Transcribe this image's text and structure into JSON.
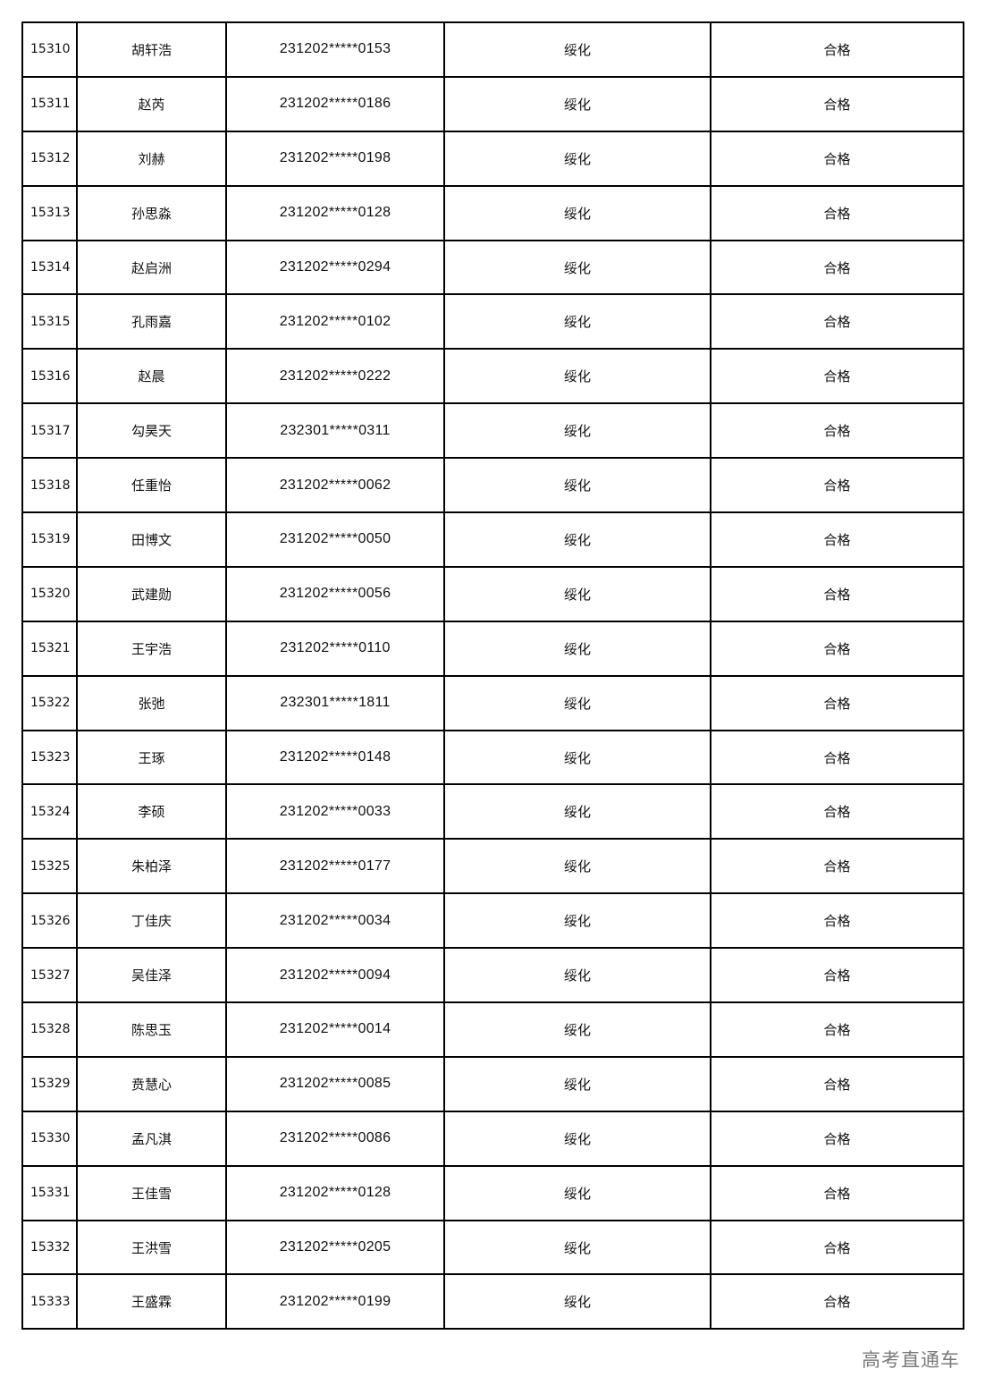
{
  "rows": [
    {
      "seq": "15310",
      "name": "胡轩浩",
      "id": "231202*****0153",
      "major": "绥化",
      "result": "合格"
    },
    {
      "seq": "15311",
      "name": "赵芮",
      "id": "231202*****0186",
      "major": "绥化",
      "result": "合格"
    },
    {
      "seq": "15312",
      "name": "刘赫",
      "id": "231202*****0198",
      "major": "绥化",
      "result": "合格"
    },
    {
      "seq": "15313",
      "name": "孙思淼",
      "id": "231202*****0128",
      "major": "绥化",
      "result": "合格"
    },
    {
      "seq": "15314",
      "name": "赵启洲",
      "id": "231202*****0294",
      "major": "绥化",
      "result": "合格"
    },
    {
      "seq": "15315",
      "name": "孔雨嘉",
      "id": "231202*****0102",
      "major": "绥化",
      "result": "合格"
    },
    {
      "seq": "15316",
      "name": "赵晨",
      "id": "231202*****0222",
      "major": "绥化",
      "result": "合格"
    },
    {
      "seq": "15317",
      "name": "勾昊天",
      "id": "232301*****0311",
      "major": "绥化",
      "result": "合格"
    },
    {
      "seq": "15318",
      "name": "任重怡",
      "id": "231202*****0062",
      "major": "绥化",
      "result": "合格"
    },
    {
      "seq": "15319",
      "name": "田博文",
      "id": "231202*****0050",
      "major": "绥化",
      "result": "合格"
    },
    {
      "seq": "15320",
      "name": "武建勋",
      "id": "231202*****0056",
      "major": "绥化",
      "result": "合格"
    },
    {
      "seq": "15321",
      "name": "王宇浩",
      "id": "231202*****0110",
      "major": "绥化",
      "result": "合格"
    },
    {
      "seq": "15322",
      "name": "张弛",
      "id": "232301*****1811",
      "major": "绥化",
      "result": "合格"
    },
    {
      "seq": "15323",
      "name": "王琢",
      "id": "231202*****0148",
      "major": "绥化",
      "result": "合格"
    },
    {
      "seq": "15324",
      "name": "李硕",
      "id": "231202*****0033",
      "major": "绥化",
      "result": "合格"
    },
    {
      "seq": "15325",
      "name": "朱柏泽",
      "id": "231202*****0177",
      "major": "绥化",
      "result": "合格"
    },
    {
      "seq": "15326",
      "name": "丁佳庆",
      "id": "231202*****0034",
      "major": "绥化",
      "result": "合格"
    },
    {
      "seq": "15327",
      "name": "吴佳泽",
      "id": "231202*****0094",
      "major": "绥化",
      "result": "合格"
    },
    {
      "seq": "15328",
      "name": "陈思玉",
      "id": "231202*****0014",
      "major": "绥化",
      "result": "合格"
    },
    {
      "seq": "15329",
      "name": "贲慧心",
      "id": "231202*****0085",
      "major": "绥化",
      "result": "合格"
    },
    {
      "seq": "15330",
      "name": "孟凡淇",
      "id": "231202*****0086",
      "major": "绥化",
      "result": "合格"
    },
    {
      "seq": "15331",
      "name": "王佳雪",
      "id": "231202*****0128",
      "major": "绥化",
      "result": "合格"
    },
    {
      "seq": "15332",
      "name": "王洪雪",
      "id": "231202*****0205",
      "major": "绥化",
      "result": "合格"
    },
    {
      "seq": "15333",
      "name": "王盛霖",
      "id": "231202*****0199",
      "major": "绥化",
      "result": "合格"
    }
  ],
  "watermark": "高考直通车"
}
